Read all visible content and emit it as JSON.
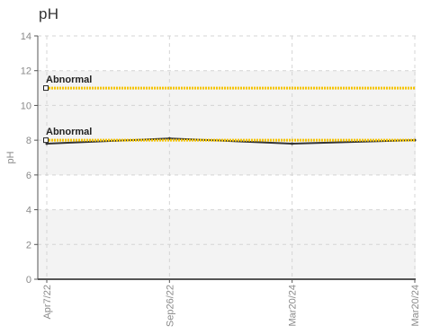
{
  "chart_data": {
    "type": "line",
    "title": "pH",
    "xlabel": "",
    "ylabel": "pH",
    "ylim": [
      0,
      14
    ],
    "yticks": [
      0,
      2,
      4,
      6,
      8,
      10,
      12,
      14
    ],
    "x": [
      "Apr7/22",
      "Sep26/22",
      "Mar20/24",
      "Mar20/24"
    ],
    "series": [
      {
        "values": [
          7.8,
          8.1,
          7.8,
          8.0
        ]
      }
    ],
    "reference_lines": [
      {
        "label": "Abnormal",
        "value": 11
      },
      {
        "label": "Abnormal",
        "value": 8
      }
    ],
    "bands": [
      [
        6,
        12
      ],
      [
        0,
        4
      ]
    ],
    "grid": true,
    "legend": "none",
    "colors": {
      "series": "#333333",
      "reference": "#f5c400",
      "band": "#f3f3f3",
      "grid": "#d4d4d4",
      "axis": "#555555"
    }
  }
}
